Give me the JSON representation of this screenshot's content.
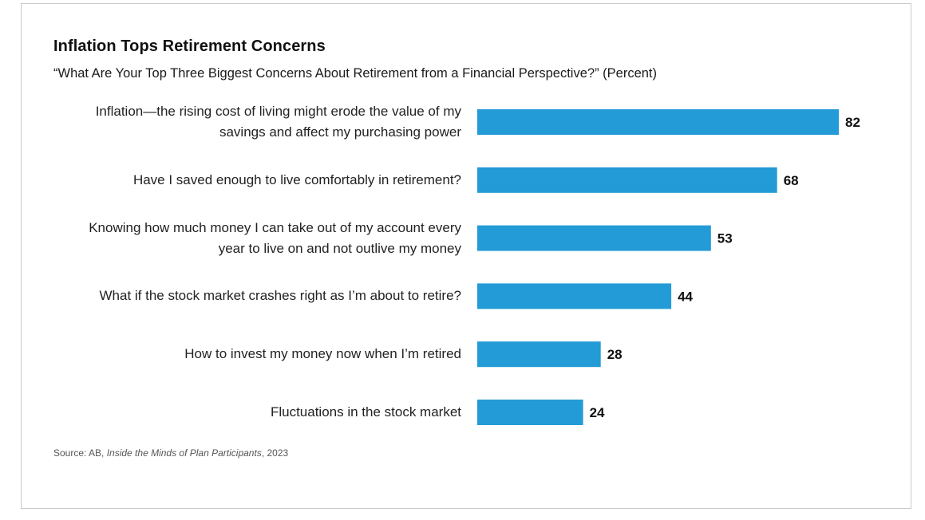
{
  "chart_data": {
    "type": "bar",
    "orientation": "horizontal",
    "title": "Inflation Tops Retirement Concerns",
    "subtitle": "“What Are Your Top Three Biggest Concerns About Retirement from a Financial Perspective?” (Percent)",
    "categories": [
      [
        "Inflation—the rising cost of living might erode the value of my",
        "savings and affect my purchasing power"
      ],
      [
        "Have I saved enough to live comfortably in retirement?"
      ],
      [
        "Knowing how much money I can take out of my account every",
        "year to live on and not outlive my money"
      ],
      [
        "What if the stock market crashes right as I’m about to retire?"
      ],
      [
        "How to invest my money now when I’m retired"
      ],
      [
        "Fluctuations in the stock market"
      ]
    ],
    "values": [
      82,
      68,
      53,
      44,
      28,
      24
    ],
    "value_labels": [
      "82",
      "68",
      "53",
      "44",
      "28",
      "24"
    ],
    "bar_color": "#239bd6",
    "grid": false,
    "legend": "none"
  },
  "source": {
    "prefix": "Source: AB, ",
    "publication": "Inside the Minds of Plan Participants",
    "suffix": ", 2023"
  }
}
